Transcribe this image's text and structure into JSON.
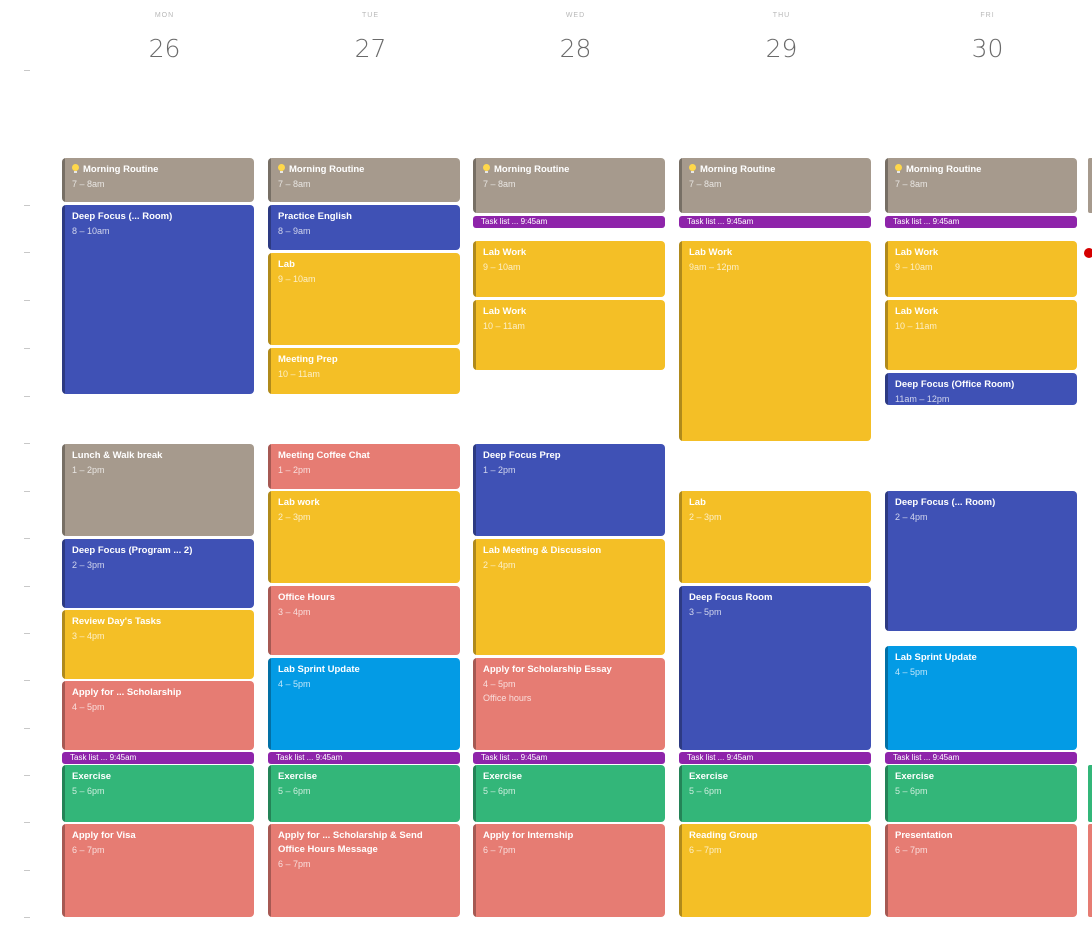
{
  "colors": {
    "taupe": "#a69a8d",
    "blue": "#3f51b5",
    "yellow": "#f4bf26",
    "red": "#e67c73",
    "cyan": "#039be5",
    "green": "#33b679",
    "purple": "#8e24aa",
    "now_marker": "#d50000"
  },
  "days": [
    {
      "dow": "MON",
      "date": "26"
    },
    {
      "dow": "TUE",
      "date": "27"
    },
    {
      "dow": "WED",
      "date": "28"
    },
    {
      "dow": "THU",
      "date": "29"
    },
    {
      "dow": "FRI",
      "date": "30"
    }
  ],
  "morning_routine": {
    "title": "Morning Routine",
    "time": "7 – 8am"
  },
  "banner_label": "Task list ... 9:45am",
  "mon": {
    "e1": {
      "title": "Deep Focus (... Room)",
      "time": "8 – 10am"
    },
    "e2": {
      "title": "Lunch & Walk break",
      "time": "1 – 2pm"
    },
    "e3": {
      "title": "Deep Focus (Program ... 2)",
      "time": "2 – 3pm"
    },
    "e4": {
      "title": "Review Day's Tasks",
      "time": "3 – 4pm"
    },
    "e5": {
      "title": "Apply for ... Scholarship",
      "time": "4 – 5pm"
    },
    "e6": {
      "title": "Exercise",
      "time": "5 – 6pm"
    },
    "e7": {
      "title": "Apply for Visa",
      "time": "6 – 7pm"
    }
  },
  "tue": {
    "e1": {
      "title": "Practice English",
      "time": "8 – 9am"
    },
    "e2": {
      "title": "Lab",
      "time": "9 – 10am"
    },
    "e3": {
      "title": "Meeting Prep",
      "time": "10 – 11am"
    },
    "e4": {
      "title": "Meeting Coffee Chat",
      "time": "1 – 2pm"
    },
    "e5": {
      "title": "Lab work",
      "time": "2 – 3pm"
    },
    "e6": {
      "title": "Office Hours",
      "time": "3 – 4pm"
    },
    "e7": {
      "title": "Lab Sprint Update",
      "time": "4 – 5pm"
    },
    "e8": {
      "title": "Exercise",
      "time": "5 – 6pm"
    },
    "e9": {
      "title": "Apply for ... Scholarship & Send Office Hours Message",
      "time": "6 – 7pm"
    }
  },
  "wed": {
    "e1": {
      "title": "Lab Work",
      "time": "9 – 10am"
    },
    "e2": {
      "title": "Lab Work",
      "time": "10 – 11am"
    },
    "e3": {
      "title": "Deep Focus Prep",
      "time": "1 – 2pm"
    },
    "e4": {
      "title": "Lab Meeting & Discussion",
      "time": "2 – 4pm"
    },
    "e5": {
      "title": "Apply for Scholarship Essay",
      "time": "4 – 5pm",
      "extra": "Office hours"
    },
    "e6": {
      "title": "Exercise",
      "time": "5 – 6pm"
    },
    "e7": {
      "title": "Apply for Internship",
      "time": "6 – 7pm"
    }
  },
  "thu": {
    "e1": {
      "title": "Lab Work",
      "time": "9am – 12pm"
    },
    "e2": {
      "title": "Lab",
      "time": "2 – 3pm"
    },
    "e3": {
      "title": "Deep Focus Room",
      "time": "3 – 5pm"
    },
    "e4": {
      "title": "Exercise",
      "time": "5 – 6pm"
    },
    "e5": {
      "title": "Reading Group",
      "time": "6 – 7pm"
    }
  },
  "fri": {
    "e1": {
      "title": "Lab Work",
      "time": "9 – 10am"
    },
    "e2": {
      "title": "Lab Work",
      "time": "10 – 11am"
    },
    "e3": {
      "title": "Deep Focus (Office Room)",
      "time": "11am – 12pm"
    },
    "e4": {
      "title": "Deep Focus (... Room)",
      "time": "2 – 4pm"
    },
    "e5": {
      "title": "Lab Sprint Update",
      "time": "4 – 5pm"
    },
    "e6": {
      "title": "Exercise",
      "time": "5 – 6pm"
    },
    "e7": {
      "title": "Presentation",
      "time": "6 – 7pm"
    }
  }
}
